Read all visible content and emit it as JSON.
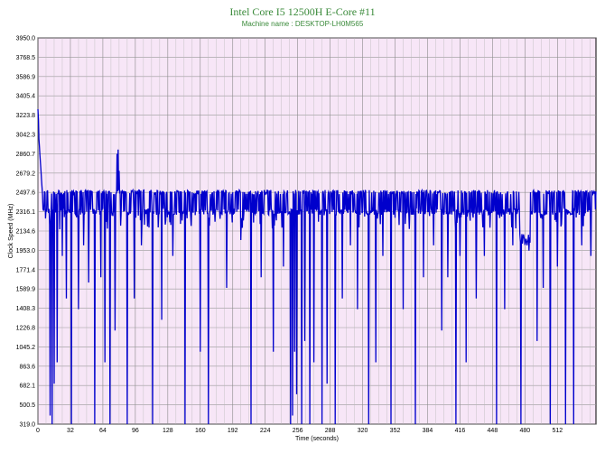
{
  "chart_data": {
    "type": "line",
    "title": "Intel Core I5 12500H E-Core #11",
    "subtitle": "Machine name : DESKTOP-LH0M565",
    "xlabel": "Time (seconds)",
    "ylabel": "Clock Speed (MHz)",
    "xlim": [
      0,
      550
    ],
    "ylim": [
      319.0,
      3950.0
    ],
    "x_ticks": [
      0,
      32,
      64,
      96,
      128,
      160,
      192,
      224,
      256,
      288,
      320,
      352,
      384,
      416,
      448,
      480,
      512
    ],
    "y_ticks": [
      "319.0",
      "500.5",
      "682.1",
      "863.6",
      "1045.2",
      "1226.8",
      "1408.3",
      "1589.9",
      "1771.4",
      "1953.0",
      "2134.6",
      "2316.1",
      "2497.6",
      "2679.2",
      "2860.7",
      "3042.3",
      "3223.8",
      "3405.4",
      "3586.9",
      "3768.5",
      "3950.0"
    ],
    "grid": true,
    "line_color": "#0000cc",
    "background_color": "#f7e6f7",
    "series": [
      {
        "baseline": 2316,
        "high": 2500,
        "initial_peak": 3280,
        "dips": [
          [
            12,
            400
          ],
          [
            14,
            319
          ],
          [
            16,
            700
          ],
          [
            19,
            900
          ],
          [
            24,
            1900
          ],
          [
            28,
            1500
          ],
          [
            33,
            319
          ],
          [
            40,
            1400
          ],
          [
            45,
            2000
          ],
          [
            50,
            1650
          ],
          [
            56,
            319
          ],
          [
            62,
            1700
          ],
          [
            66,
            900
          ],
          [
            71,
            319
          ],
          [
            76,
            1200
          ],
          [
            80,
            1400
          ],
          [
            88,
            319
          ],
          [
            95,
            1500
          ],
          [
            102,
            2000
          ],
          [
            113,
            319
          ],
          [
            122,
            1300
          ],
          [
            133,
            1900
          ],
          [
            145,
            319
          ],
          [
            160,
            1000
          ],
          [
            168,
            319
          ],
          [
            186,
            1600
          ],
          [
            200,
            2050
          ],
          [
            210,
            319
          ],
          [
            220,
            1700
          ],
          [
            232,
            1000
          ],
          [
            242,
            1800
          ],
          [
            249,
            319
          ],
          [
            251,
            400
          ],
          [
            253,
            1000
          ],
          [
            255,
            600
          ],
          [
            260,
            319
          ],
          [
            263,
            1100
          ],
          [
            268,
            319
          ],
          [
            272,
            900
          ],
          [
            280,
            319
          ],
          [
            285,
            700
          ],
          [
            293,
            319
          ],
          [
            300,
            1500
          ],
          [
            308,
            2000
          ],
          [
            315,
            1400
          ],
          [
            326,
            319
          ],
          [
            333,
            900
          ],
          [
            340,
            1900
          ],
          [
            348,
            319
          ],
          [
            360,
            1400
          ],
          [
            372,
            319
          ],
          [
            380,
            1700
          ],
          [
            390,
            2000
          ],
          [
            398,
            1200
          ],
          [
            404,
            1700
          ],
          [
            412,
            319
          ],
          [
            416,
            1900
          ],
          [
            422,
            900
          ],
          [
            432,
            1500
          ],
          [
            440,
            1900
          ],
          [
            452,
            319
          ],
          [
            460,
            1400
          ],
          [
            468,
            2000
          ],
          [
            476,
            319
          ],
          [
            484,
            1950
          ],
          [
            492,
            1100
          ],
          [
            498,
            1600
          ],
          [
            505,
            319
          ],
          [
            512,
            1800
          ],
          [
            520,
            319
          ],
          [
            528,
            319
          ],
          [
            536,
            2000
          ],
          [
            545,
            1900
          ]
        ],
        "spike": [
          [
            78,
            2860
          ],
          [
            79,
            2900
          ],
          [
            80,
            2700
          ]
        ],
        "sag_segments": [
          [
            475,
            485,
            2050
          ]
        ]
      }
    ]
  }
}
